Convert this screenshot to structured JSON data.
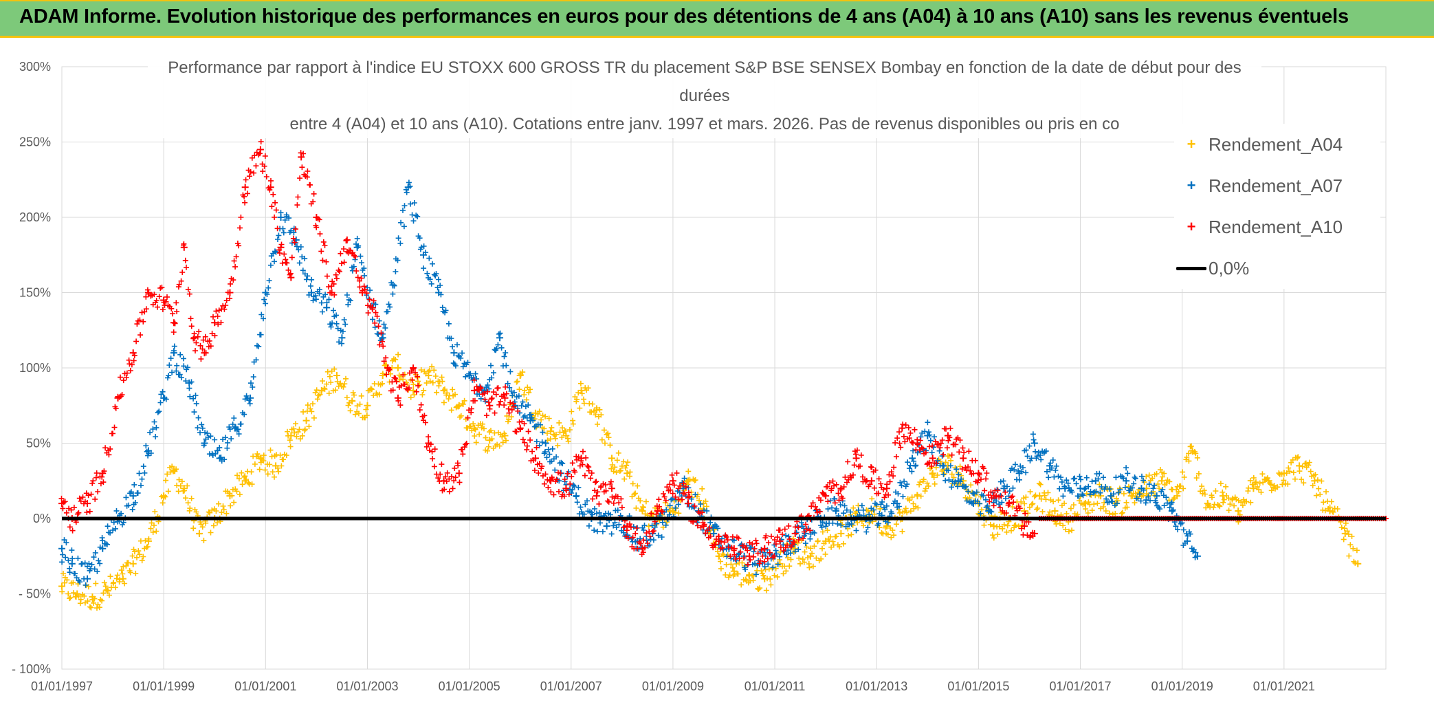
{
  "header": {
    "title": "ADAM Informe. Evolution historique des performances en euros pour des détentions de 4 ans (A04) à 10 ans (A10) sans les revenus éventuels"
  },
  "colors": {
    "banner": "#7dc97a",
    "accent": "#f4c20d",
    "a04": "#ffc000",
    "a07": "#0070c0",
    "a10": "#ff0000",
    "zero": "#000000"
  },
  "chart_data": {
    "type": "scatter",
    "title_lines": [
      "Performance par rapport à l'indice EU STOXX 600 GROSS TR  du placement S&P BSE SENSEX Bombay en fonction de la date de début pour des durées",
      "entre 4 (A04) et 10 ans (A10). Cotations entre janv. 1997 et mars. 2026. Pas de revenus disponibles ou pris en co"
    ],
    "title_display": [
      "Performance par rapport à l'indice EU STOXX 600 GROSS TR  du placement S&P BSE SENSEX Bombay en fonction de la date de début pour des",
      "durées",
      "entre 4 (A04) et 10 ans (A10). Cotations entre janv. 1997 et mars. 2026. Pas de revenus disponibles ou pris en co"
    ],
    "xlabel": "",
    "ylabel": "",
    "x_range": [
      1997.0,
      2023.0
    ],
    "ylim": [
      -100,
      300
    ],
    "y_ticks": [
      "- 100%",
      "- 50%",
      "0%",
      "50%",
      "100%",
      "150%",
      "200%",
      "250%",
      "300%"
    ],
    "y_tick_values": [
      -100,
      -50,
      0,
      50,
      100,
      150,
      200,
      250,
      300
    ],
    "x_ticks": [
      "01/01/1997",
      "01/01/1999",
      "01/01/2001",
      "01/01/2003",
      "01/01/2005",
      "01/01/2007",
      "01/01/2009",
      "01/01/2011",
      "01/01/2013",
      "01/01/2015",
      "01/01/2017",
      "01/01/2019",
      "01/01/2021"
    ],
    "x_tick_values": [
      1997,
      1999,
      2001,
      2003,
      2005,
      2007,
      2009,
      2011,
      2013,
      2015,
      2017,
      2019,
      2021
    ],
    "grid": "both",
    "legend": "right",
    "series": [
      {
        "name": "Rendement_A04",
        "marker": "+",
        "color": "#ffc000",
        "x": [
          1997.0,
          1997.3,
          1997.6,
          1997.9,
          1998.2,
          1998.4,
          1998.7,
          1999.0,
          1999.2,
          1999.4,
          1999.7,
          2000.0,
          2000.3,
          2000.6,
          2000.9,
          2001.2,
          2001.5,
          2001.8,
          2002.1,
          2002.4,
          2002.7,
          2003.0,
          2003.3,
          2003.6,
          2003.9,
          2004.2,
          2004.5,
          2004.8,
          2005.1,
          2005.4,
          2005.7,
          2006.0,
          2006.3,
          2006.6,
          2006.9,
          2007.2,
          2007.5,
          2007.8,
          2008.1,
          2008.4,
          2008.7,
          2009.0,
          2009.3,
          2009.6,
          2009.9,
          2010.2,
          2010.5,
          2010.8,
          2011.1,
          2011.4,
          2011.7,
          2012.0,
          2012.3,
          2012.6,
          2012.9,
          2013.2,
          2013.5,
          2013.8,
          2014.1,
          2014.4,
          2014.7,
          2015.0,
          2015.3,
          2015.6,
          2015.9,
          2016.2,
          2016.5,
          2016.8,
          2017.1,
          2017.4,
          2017.7,
          2018.0,
          2018.3,
          2018.6,
          2018.9,
          2019.2,
          2019.5,
          2019.8,
          2020.1,
          2020.4,
          2020.7,
          2021.0,
          2021.3,
          2021.6,
          2021.9,
          2022.2,
          2022.45
        ],
        "y": [
          -45,
          -50,
          -52,
          -48,
          -40,
          -30,
          -15,
          15,
          32,
          20,
          -10,
          0,
          15,
          25,
          40,
          35,
          55,
          65,
          85,
          95,
          78,
          75,
          95,
          100,
          85,
          95,
          85,
          75,
          60,
          52,
          55,
          95,
          70,
          58,
          55,
          85,
          72,
          40,
          30,
          5,
          0,
          5,
          25,
          10,
          -25,
          -35,
          -38,
          -40,
          -30,
          -20,
          -25,
          -15,
          -10,
          0,
          5,
          -5,
          0,
          15,
          30,
          35,
          25,
          10,
          -5,
          0,
          5,
          15,
          5,
          0,
          10,
          15,
          10,
          15,
          20,
          25,
          15,
          45,
          10,
          15,
          5,
          20,
          25,
          30,
          35,
          25,
          5,
          -10,
          -30
        ]
      },
      {
        "name": "Rendement_A07",
        "marker": "+",
        "color": "#0070c0",
        "x": [
          1997.0,
          1997.2,
          1997.5,
          1997.8,
          1998.1,
          1998.4,
          1998.7,
          1999.0,
          1999.2,
          1999.5,
          1999.8,
          2000.1,
          2000.4,
          2000.7,
          2001.0,
          2001.3,
          2001.6,
          2001.9,
          2002.2,
          2002.5,
          2002.8,
          2003.1,
          2003.3,
          2003.5,
          2003.8,
          2004.1,
          2004.4,
          2004.7,
          2005.0,
          2005.3,
          2005.6,
          2005.9,
          2006.2,
          2006.5,
          2006.8,
          2007.1,
          2007.4,
          2007.7,
          2008.0,
          2008.3,
          2008.6,
          2008.9,
          2009.2,
          2009.5,
          2009.8,
          2010.1,
          2010.4,
          2010.7,
          2011.0,
          2011.3,
          2011.6,
          2011.9,
          2012.2,
          2012.5,
          2012.8,
          2013.1,
          2013.4,
          2013.7,
          2014.0,
          2014.3,
          2014.6,
          2014.9,
          2015.2,
          2015.5,
          2015.8,
          2016.1,
          2016.4,
          2016.7,
          2017.0,
          2017.3,
          2017.6,
          2017.9,
          2018.2,
          2018.5,
          2018.8,
          2019.1,
          2019.3
        ],
        "y": [
          -20,
          -30,
          -40,
          -20,
          0,
          15,
          45,
          80,
          110,
          90,
          50,
          40,
          60,
          80,
          150,
          200,
          185,
          150,
          140,
          120,
          180,
          140,
          120,
          155,
          220,
          175,
          150,
          110,
          95,
          85,
          120,
          75,
          65,
          50,
          30,
          15,
          0,
          -5,
          0,
          -15,
          -10,
          0,
          20,
          5,
          -10,
          -20,
          -25,
          -30,
          -25,
          -15,
          -10,
          0,
          5,
          0,
          0,
          2,
          10,
          40,
          55,
          35,
          25,
          10,
          5,
          20,
          30,
          50,
          35,
          20,
          20,
          25,
          15,
          25,
          20,
          15,
          5,
          -15,
          -25
        ]
      },
      {
        "name": "Rendement_A10",
        "marker": "+",
        "color": "#ff0000",
        "x": [
          1997.0,
          1997.2,
          1997.5,
          1997.8,
          1998.1,
          1998.4,
          1998.7,
          1999.0,
          1999.2,
          1999.4,
          1999.6,
          1999.8,
          2000.0,
          2000.3,
          2000.6,
          2000.9,
          2001.1,
          2001.3,
          2001.5,
          2001.7,
          2002.0,
          2002.3,
          2002.6,
          2002.9,
          2003.1,
          2003.4,
          2003.6,
          2003.9,
          2004.2,
          2004.5,
          2004.8,
          2005.1,
          2005.4,
          2005.7,
          2006.0,
          2006.3,
          2006.6,
          2006.9,
          2007.2,
          2007.5,
          2007.8,
          2008.1,
          2008.4,
          2008.7,
          2009.0,
          2009.3,
          2009.6,
          2009.9,
          2010.2,
          2010.5,
          2010.8,
          2011.1,
          2011.4,
          2011.7,
          2012.0,
          2012.3,
          2012.6,
          2012.9,
          2013.2,
          2013.5,
          2013.8,
          2014.1,
          2014.4,
          2014.7,
          2015.0,
          2015.3,
          2015.6,
          2015.9,
          2016.1
        ],
        "y": [
          10,
          0,
          10,
          30,
          80,
          110,
          150,
          145,
          130,
          180,
          120,
          110,
          130,
          150,
          220,
          245,
          220,
          180,
          160,
          240,
          200,
          150,
          185,
          150,
          140,
          100,
          80,
          100,
          50,
          25,
          30,
          85,
          75,
          80,
          60,
          40,
          25,
          20,
          40,
          15,
          20,
          -5,
          -20,
          5,
          25,
          10,
          -5,
          -15,
          -20,
          -25,
          -20,
          -15,
          -10,
          0,
          15,
          20,
          40,
          25,
          20,
          60,
          50,
          40,
          55,
          40,
          30,
          15,
          10,
          -5,
          -10
        ]
      },
      {
        "name": "0,0%",
        "marker": "line",
        "color": "#000000",
        "x": [
          1997.0,
          2023.0
        ],
        "y": [
          0,
          0
        ]
      }
    ]
  }
}
